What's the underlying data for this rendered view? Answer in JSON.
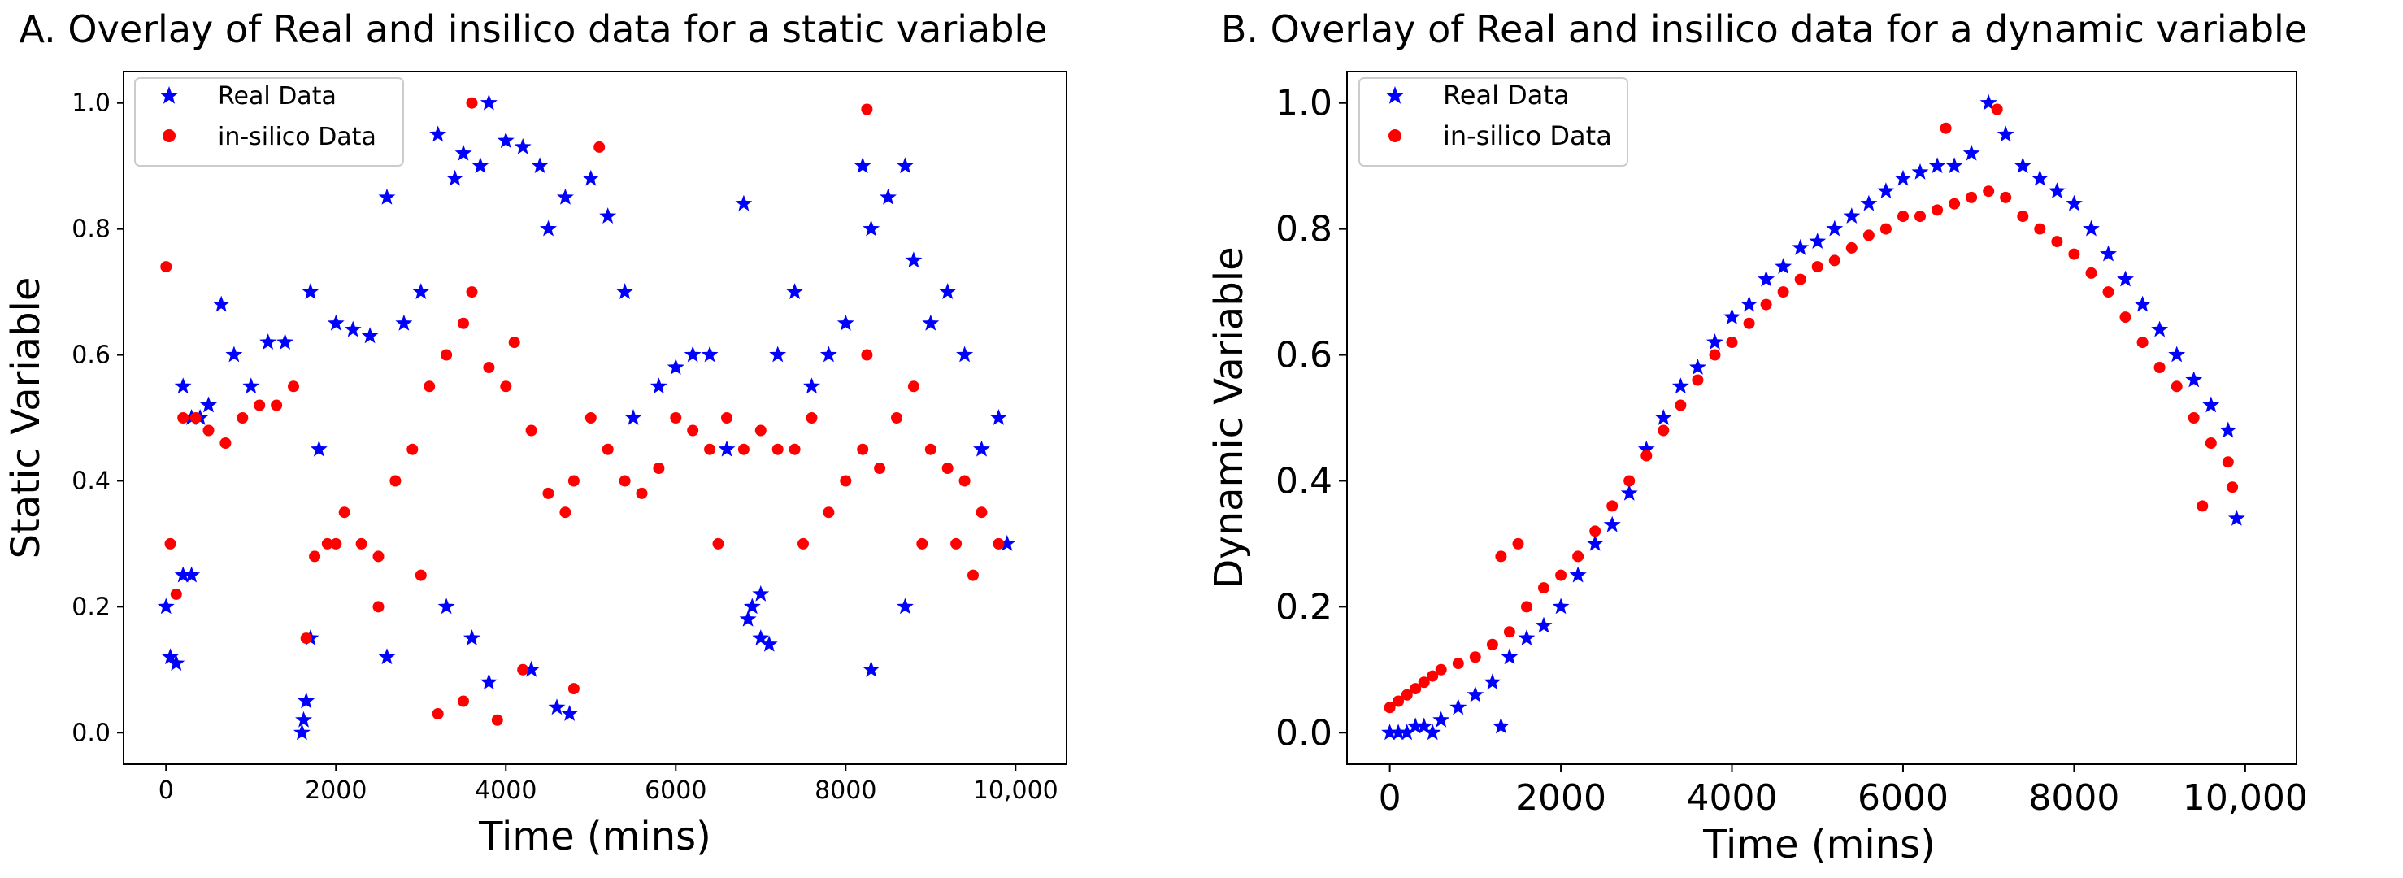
{
  "colors": {
    "real": "#0000ff",
    "insilico": "#ff0000",
    "axis": "#000000",
    "legend_border": "#cccccc"
  },
  "legend_icons": {
    "real": "star-marker-icon",
    "insilico": "circle-marker-icon"
  },
  "chart_data": [
    {
      "type": "scatter",
      "title": "A. Overlay of Real and insilico data for a static variable",
      "xlabel": "Time (mins)",
      "ylabel": "Static Variable",
      "xlim": [
        -500,
        10600
      ],
      "ylim": [
        -0.05,
        1.05
      ],
      "xticks": [
        0,
        2000,
        4000,
        6000,
        8000,
        10000
      ],
      "xtick_labels": [
        "0",
        "2000",
        "4000",
        "6000",
        "8000",
        "10,000"
      ],
      "yticks": [
        0.0,
        0.2,
        0.4,
        0.6,
        0.8,
        1.0
      ],
      "ytick_labels": [
        "0.0",
        "0.2",
        "0.4",
        "0.6",
        "0.8",
        "1.0"
      ],
      "legend_position": "upper-left",
      "series": [
        {
          "name": "Real Data",
          "marker": "star",
          "color": "#0000ff",
          "x": [
            0,
            50,
            120,
            200,
            300,
            400,
            500,
            650,
            800,
            1000,
            1200,
            1400,
            1600,
            1650,
            1700,
            1800,
            2000,
            2200,
            2400,
            2600,
            2800,
            3000,
            3200,
            3400,
            3500,
            3700,
            3800,
            4000,
            4200,
            4400,
            4500,
            4700,
            5000,
            5200,
            5400,
            5500,
            5800,
            6000,
            6200,
            6400,
            6600,
            6800,
            6900,
            7000,
            7200,
            7400,
            7600,
            7800,
            8000,
            8200,
            8300,
            8500,
            8700,
            8800,
            9000,
            9200,
            9400,
            9600,
            9800,
            9900,
            3300,
            3600,
            3800,
            4300,
            6850,
            8300,
            8700,
            2600,
            1620,
            1700,
            4600,
            4750,
            7000,
            7100,
            300,
            200
          ],
          "y": [
            0.2,
            0.12,
            0.11,
            0.55,
            0.5,
            0.5,
            0.52,
            0.68,
            0.6,
            0.55,
            0.62,
            0.62,
            0.0,
            0.05,
            0.7,
            0.45,
            0.65,
            0.64,
            0.63,
            0.85,
            0.65,
            0.7,
            0.95,
            0.88,
            0.92,
            0.9,
            1.0,
            0.94,
            0.93,
            0.9,
            0.8,
            0.85,
            0.88,
            0.82,
            0.7,
            0.5,
            0.55,
            0.58,
            0.6,
            0.6,
            0.45,
            0.84,
            0.2,
            0.15,
            0.6,
            0.7,
            0.55,
            0.6,
            0.65,
            0.9,
            0.8,
            0.85,
            0.9,
            0.75,
            0.65,
            0.7,
            0.6,
            0.45,
            0.5,
            0.3,
            0.2,
            0.15,
            0.08,
            0.1,
            0.18,
            0.1,
            0.2,
            0.12,
            0.02,
            0.15,
            0.04,
            0.03,
            0.22,
            0.14,
            0.25,
            0.25
          ]
        },
        {
          "name": "in-silico Data",
          "marker": "circle",
          "color": "#ff0000",
          "x": [
            0,
            50,
            120,
            200,
            350,
            500,
            700,
            900,
            1100,
            1300,
            1500,
            1650,
            1750,
            1900,
            2100,
            2300,
            2500,
            2700,
            2900,
            3100,
            3300,
            3500,
            3600,
            3800,
            4000,
            4100,
            4300,
            4500,
            4700,
            4800,
            5000,
            5200,
            5400,
            5600,
            5800,
            6000,
            6200,
            6400,
            6600,
            6800,
            7000,
            7200,
            7400,
            7600,
            7800,
            8000,
            8200,
            8250,
            8400,
            8600,
            8800,
            9000,
            9200,
            9400,
            9600,
            9800,
            3200,
            3500,
            3600,
            3900,
            4200,
            4800,
            5100,
            8250,
            9300,
            2000,
            2500,
            3000,
            6500,
            7500,
            8900,
            9500
          ],
          "y": [
            0.74,
            0.3,
            0.22,
            0.5,
            0.5,
            0.48,
            0.46,
            0.5,
            0.52,
            0.52,
            0.55,
            0.15,
            0.28,
            0.3,
            0.35,
            0.3,
            0.28,
            0.4,
            0.45,
            0.55,
            0.6,
            0.65,
            0.7,
            0.58,
            0.55,
            0.62,
            0.48,
            0.38,
            0.35,
            0.4,
            0.5,
            0.45,
            0.4,
            0.38,
            0.42,
            0.5,
            0.48,
            0.45,
            0.5,
            0.45,
            0.48,
            0.45,
            0.45,
            0.5,
            0.35,
            0.4,
            0.45,
            0.99,
            0.42,
            0.5,
            0.55,
            0.45,
            0.42,
            0.4,
            0.35,
            0.3,
            0.03,
            0.05,
            1.0,
            0.02,
            0.1,
            0.07,
            0.93,
            0.6,
            0.3,
            0.3,
            0.2,
            0.25,
            0.3,
            0.3,
            0.3,
            0.25
          ]
        }
      ]
    },
    {
      "type": "scatter",
      "title": "B. Overlay of Real and insilico data for a dynamic variable",
      "xlabel": "Time (mins)",
      "ylabel": "Dynamic Variable",
      "xlim": [
        -500,
        10600
      ],
      "ylim": [
        -0.05,
        1.05
      ],
      "xticks": [
        0,
        2000,
        4000,
        6000,
        8000,
        10000
      ],
      "xtick_labels": [
        "0",
        "2000",
        "4000",
        "6000",
        "8000",
        "10,000"
      ],
      "yticks": [
        0.0,
        0.2,
        0.4,
        0.6,
        0.8,
        1.0
      ],
      "ytick_labels": [
        "0.0",
        "0.2",
        "0.4",
        "0.6",
        "0.8",
        "1.0"
      ],
      "legend_position": "upper-left",
      "series": [
        {
          "name": "Real Data",
          "marker": "star",
          "color": "#0000ff",
          "x": [
            0,
            100,
            200,
            300,
            400,
            500,
            600,
            800,
            1000,
            1200,
            1400,
            1600,
            1800,
            2000,
            2200,
            2400,
            2600,
            2800,
            3000,
            3200,
            3400,
            3600,
            3800,
            4000,
            4200,
            4400,
            4600,
            4800,
            5000,
            5200,
            5400,
            5600,
            5800,
            6000,
            6200,
            6400,
            6600,
            6800,
            7000,
            7200,
            7400,
            7600,
            7800,
            8000,
            8200,
            8400,
            8600,
            8800,
            9000,
            9200,
            9400,
            9600,
            9800,
            9900,
            1300
          ],
          "y": [
            0.0,
            0.0,
            0.0,
            0.01,
            0.01,
            0.0,
            0.02,
            0.04,
            0.06,
            0.08,
            0.12,
            0.15,
            0.17,
            0.2,
            0.25,
            0.3,
            0.33,
            0.38,
            0.45,
            0.5,
            0.55,
            0.58,
            0.62,
            0.66,
            0.68,
            0.72,
            0.74,
            0.77,
            0.78,
            0.8,
            0.82,
            0.84,
            0.86,
            0.88,
            0.89,
            0.9,
            0.9,
            0.92,
            1.0,
            0.95,
            0.9,
            0.88,
            0.86,
            0.84,
            0.8,
            0.76,
            0.72,
            0.68,
            0.64,
            0.6,
            0.56,
            0.52,
            0.48,
            0.34,
            0.01
          ]
        },
        {
          "name": "in-silico Data",
          "marker": "circle",
          "color": "#ff0000",
          "x": [
            0,
            100,
            200,
            300,
            400,
            500,
            600,
            800,
            1000,
            1200,
            1400,
            1600,
            1800,
            2000,
            2200,
            2400,
            2600,
            2800,
            3000,
            3200,
            3400,
            3600,
            3800,
            4000,
            4200,
            4400,
            4600,
            4800,
            5000,
            5200,
            5400,
            5600,
            5800,
            6000,
            6200,
            6400,
            6600,
            6800,
            7000,
            7200,
            7400,
            7600,
            7800,
            8000,
            8200,
            8400,
            8600,
            8800,
            9000,
            9200,
            9400,
            9600,
            9800,
            9850,
            1300,
            1500,
            6500,
            7100,
            9500
          ],
          "y": [
            0.04,
            0.05,
            0.06,
            0.07,
            0.08,
            0.09,
            0.1,
            0.11,
            0.12,
            0.14,
            0.16,
            0.2,
            0.23,
            0.25,
            0.28,
            0.32,
            0.36,
            0.4,
            0.44,
            0.48,
            0.52,
            0.56,
            0.6,
            0.62,
            0.65,
            0.68,
            0.7,
            0.72,
            0.74,
            0.75,
            0.77,
            0.79,
            0.8,
            0.82,
            0.82,
            0.83,
            0.84,
            0.85,
            0.86,
            0.85,
            0.82,
            0.8,
            0.78,
            0.76,
            0.73,
            0.7,
            0.66,
            0.62,
            0.58,
            0.55,
            0.5,
            0.46,
            0.43,
            0.39,
            0.28,
            0.3,
            0.96,
            0.99,
            0.36
          ]
        }
      ]
    }
  ]
}
